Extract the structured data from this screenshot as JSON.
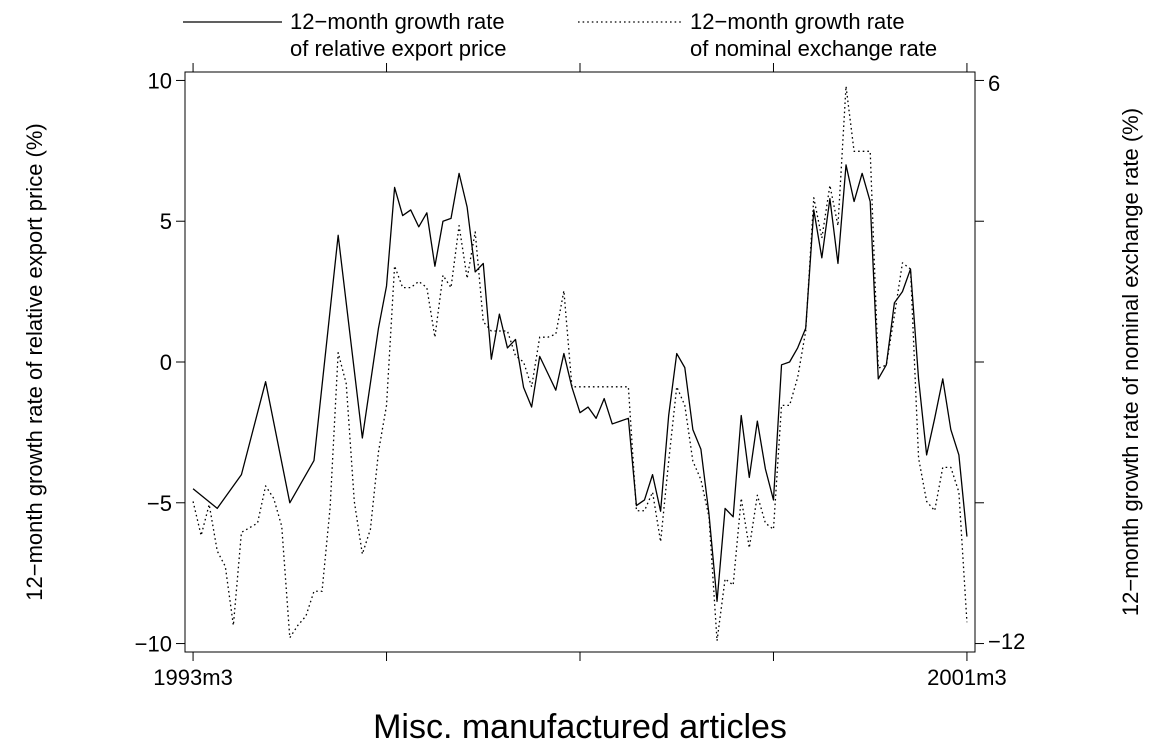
{
  "chart_data": {
    "type": "line",
    "title": "Misc. manufactured articles",
    "ylabel": "12−month growth rate of relative export price (%)",
    "y2label": "12−month growth rate of nominal exchange rate (%)",
    "ylim": [
      -10.3,
      10.3
    ],
    "y2lim": [
      -12.36,
      6.36
    ],
    "yticks": [
      -10,
      -5,
      0,
      5,
      10
    ],
    "yticklabels": [
      "−10",
      "−5",
      "0",
      "5",
      "10"
    ],
    "y2ticks": [
      -12,
      6
    ],
    "y2ticklabels": [
      "−12",
      "6"
    ],
    "xlim": [
      -1,
      97
    ],
    "xticks": [
      0,
      24,
      48,
      72,
      96
    ],
    "xticklabels": [
      "1993m3",
      "",
      "",
      "",
      "2001m3"
    ],
    "grid": false,
    "legend_position": "top",
    "series": [
      {
        "name": "12−month growth rate of relative export price",
        "axis": "left",
        "style": "solid",
        "points": [
          [
            0,
            -4.5
          ],
          [
            3,
            -5.2
          ],
          [
            6,
            -4
          ],
          [
            9,
            -0.7
          ],
          [
            12,
            -5
          ],
          [
            15,
            -3.5
          ],
          [
            18,
            4.5
          ],
          [
            21,
            -2.7
          ],
          [
            23,
            1.2
          ],
          [
            24,
            2.7
          ],
          [
            25,
            6.2
          ],
          [
            26,
            5.2
          ],
          [
            27,
            5.4
          ],
          [
            28,
            4.8
          ],
          [
            29,
            5.3
          ],
          [
            30,
            3.4
          ],
          [
            31,
            5
          ],
          [
            32,
            5.1
          ],
          [
            33,
            6.7
          ],
          [
            34,
            5.5
          ],
          [
            35,
            3.2
          ],
          [
            36,
            3.5
          ],
          [
            37,
            0.1
          ],
          [
            38,
            1.7
          ],
          [
            39,
            0.5
          ],
          [
            40,
            0.8
          ],
          [
            41,
            -0.9
          ],
          [
            42,
            -1.6
          ],
          [
            43,
            0.2
          ],
          [
            44,
            -0.4
          ],
          [
            45,
            -1
          ],
          [
            46,
            0.3
          ],
          [
            47,
            -0.9
          ],
          [
            48,
            -1.8
          ],
          [
            49,
            -1.6
          ],
          [
            50,
            -2
          ],
          [
            51,
            -1.3
          ],
          [
            52,
            -2.2
          ],
          [
            53,
            -2.1
          ],
          [
            54,
            -2
          ],
          [
            55,
            -5.1
          ],
          [
            56,
            -4.9
          ],
          [
            57,
            -4
          ],
          [
            58,
            -5.3
          ],
          [
            59,
            -1.9
          ],
          [
            60,
            0.3
          ],
          [
            61,
            -0.2
          ],
          [
            62,
            -2.4
          ],
          [
            63,
            -3.1
          ],
          [
            64,
            -5.4
          ],
          [
            65,
            -8.5
          ],
          [
            66,
            -5.2
          ],
          [
            67,
            -5.5
          ],
          [
            68,
            -1.9
          ],
          [
            69,
            -4.1
          ],
          [
            70,
            -2.1
          ],
          [
            71,
            -3.8
          ],
          [
            72,
            -4.9
          ],
          [
            73,
            -0.1
          ],
          [
            74,
            0
          ],
          [
            75,
            0.5
          ],
          [
            76,
            1.2
          ],
          [
            77,
            5.4
          ],
          [
            78,
            3.7
          ],
          [
            79,
            5.8
          ],
          [
            80,
            3.5
          ],
          [
            81,
            7
          ],
          [
            82,
            5.7
          ],
          [
            83,
            6.7
          ],
          [
            84,
            5.7
          ],
          [
            85,
            -0.6
          ],
          [
            86,
            -0.1
          ],
          [
            87,
            2.1
          ],
          [
            88,
            2.5
          ],
          [
            89,
            3.3
          ],
          [
            90,
            -0.6
          ],
          [
            91,
            -3.3
          ],
          [
            92,
            -2
          ],
          [
            93,
            -0.6
          ],
          [
            94,
            -2.4
          ],
          [
            95,
            -3.3
          ],
          [
            96,
            -6.2
          ]
        ]
      },
      {
        "name": "12−month growth rate of nominal exchange rate",
        "axis": "right",
        "style": "dotted",
        "points": [
          [
            0,
            -7.5
          ],
          [
            1,
            -8.6
          ],
          [
            2,
            -7.6
          ],
          [
            3,
            -9.1
          ],
          [
            4,
            -9.6
          ],
          [
            5,
            -11.5
          ],
          [
            6,
            -8.5
          ],
          [
            8,
            -8.2
          ],
          [
            9,
            -7
          ],
          [
            10,
            -7.4
          ],
          [
            11,
            -8.3
          ],
          [
            12,
            -11.9
          ],
          [
            13,
            -11.5
          ],
          [
            14,
            -11.2
          ],
          [
            15,
            -10.4
          ],
          [
            16,
            -10.4
          ],
          [
            17,
            -7.7
          ],
          [
            18,
            -2.7
          ],
          [
            19,
            -3.7
          ],
          [
            20,
            -7.5
          ],
          [
            21,
            -9.2
          ],
          [
            22,
            -8.4
          ],
          [
            23,
            -5.9
          ],
          [
            24,
            -4.4
          ],
          [
            25,
            0.1
          ],
          [
            26,
            -0.6
          ],
          [
            27,
            -0.6
          ],
          [
            28,
            -0.4
          ],
          [
            29,
            -0.6
          ],
          [
            30,
            -2.2
          ],
          [
            31,
            -0.2
          ],
          [
            32,
            -0.6
          ],
          [
            33,
            1.4
          ],
          [
            34,
            -0.3
          ],
          [
            35,
            1.2
          ],
          [
            36,
            -1.7
          ],
          [
            37,
            -2
          ],
          [
            38,
            -2
          ],
          [
            39,
            -2
          ],
          [
            40,
            -2.8
          ],
          [
            41,
            -3
          ],
          [
            42,
            -3.8
          ],
          [
            43,
            -2.2
          ],
          [
            44,
            -2.2
          ],
          [
            45,
            -2.1
          ],
          [
            46,
            -0.7
          ],
          [
            47,
            -3.8
          ],
          [
            48,
            -3.8
          ],
          [
            49,
            -3.8
          ],
          [
            50,
            -3.8
          ],
          [
            51,
            -3.8
          ],
          [
            52,
            -3.8
          ],
          [
            53,
            -3.8
          ],
          [
            54,
            -3.8
          ],
          [
            55,
            -7.8
          ],
          [
            56,
            -7.8
          ],
          [
            57,
            -7.2
          ],
          [
            58,
            -8.8
          ],
          [
            59,
            -6.2
          ],
          [
            60,
            -3.8
          ],
          [
            61,
            -4.4
          ],
          [
            62,
            -6.2
          ],
          [
            63,
            -6.8
          ],
          [
            64,
            -8
          ],
          [
            65,
            -12
          ],
          [
            66,
            -10
          ],
          [
            67,
            -10.2
          ],
          [
            68,
            -7.4
          ],
          [
            69,
            -9
          ],
          [
            70,
            -7.3
          ],
          [
            71,
            -8.2
          ],
          [
            72,
            -8.4
          ],
          [
            73,
            -4.4
          ],
          [
            74,
            -4.4
          ],
          [
            75,
            -3.5
          ],
          [
            76,
            -2
          ],
          [
            77,
            2.3
          ],
          [
            78,
            1
          ],
          [
            79,
            2.7
          ],
          [
            80,
            1.4
          ],
          [
            81,
            5.9
          ],
          [
            82,
            3.8
          ],
          [
            83,
            3.8
          ],
          [
            84,
            3.8
          ],
          [
            85,
            -3.2
          ],
          [
            86,
            -3.1
          ],
          [
            87,
            -1.5
          ],
          [
            88,
            0.2
          ],
          [
            89,
            0
          ],
          [
            90,
            -6.1
          ],
          [
            91,
            -7.5
          ],
          [
            92,
            -7.8
          ],
          [
            93,
            -6.4
          ],
          [
            94,
            -6.4
          ],
          [
            95,
            -7.2
          ],
          [
            96,
            -11.4
          ]
        ]
      }
    ]
  }
}
